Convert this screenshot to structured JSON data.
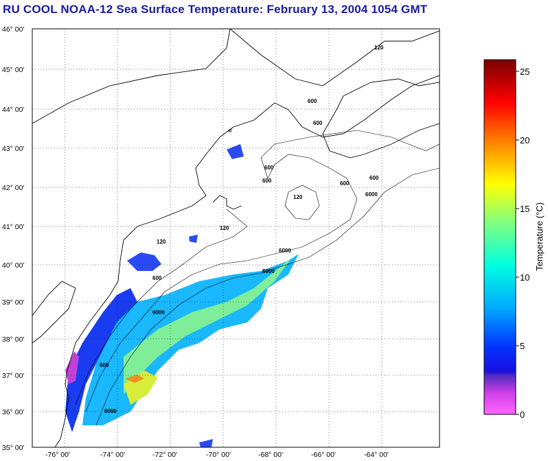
{
  "title": "RU COOL  NOAA-12  Sea Surface Temperature:  February 13, 2004 1054 GMT",
  "map": {
    "lat_labels": [
      "46° 00'",
      "45° 00'",
      "44° 00'",
      "43° 00'",
      "42° 00'",
      "41° 00'",
      "40° 00'",
      "39° 00'",
      "38° 00'",
      "37° 00'",
      "36° 00'",
      "35° 00'"
    ],
    "lon_labels": [
      "-76° 00'",
      "-74° 00'",
      "-72° 00'",
      "-70° 00'",
      "-68° 00'",
      "-66° 00'",
      "-64° 00'"
    ],
    "isobath_labels": [
      "120",
      "120",
      "120",
      "120",
      "600",
      "600",
      "600",
      "600",
      "600",
      "600",
      "600",
      "6000",
      "6000",
      "6000",
      "6000",
      "600",
      "6000"
    ]
  },
  "colorbar": {
    "title": "Temperature (°C)",
    "ticks": [
      "25",
      "20",
      "15",
      "10",
      "5",
      "0"
    ],
    "colors": {
      "c0": "#ff66ff",
      "c3": "#4c2cc0",
      "c5": "#0033ff",
      "c8": "#00aaff",
      "c11": "#00ffe0",
      "c14": "#80ff80",
      "c17": "#ffff00",
      "c20": "#ff8000",
      "c23": "#ff0000",
      "c26": "#7a0000"
    }
  }
}
